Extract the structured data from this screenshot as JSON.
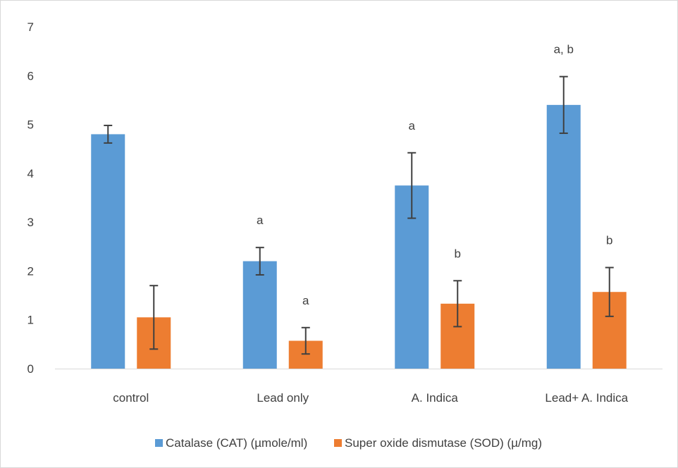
{
  "chart_data": {
    "type": "bar",
    "title": "",
    "xlabel": "",
    "ylabel": "",
    "ylim": [
      0,
      7
    ],
    "yticks": [
      0,
      1,
      2,
      3,
      4,
      5,
      6,
      7
    ],
    "grid": false,
    "legend_position": "bottom",
    "categories": [
      "control",
      "Lead only",
      "A. Indica",
      "Lead+ A. Indica"
    ],
    "series": [
      {
        "name": "Catalase (CAT) (µmole/ml)",
        "color": "#5B9BD5",
        "values": [
          4.8,
          2.2,
          3.75,
          5.4
        ],
        "error": [
          0.18,
          0.28,
          0.67,
          0.58
        ],
        "annotations": [
          "",
          "a",
          "a",
          "a, b"
        ]
      },
      {
        "name": "Super oxide dismutase (SOD) (µ/mg)",
        "color": "#ED7D31",
        "values": [
          1.05,
          0.57,
          1.33,
          1.57
        ],
        "error": [
          0.65,
          0.27,
          0.47,
          0.5
        ],
        "annotations": [
          "",
          "a",
          "b",
          "b"
        ]
      }
    ]
  }
}
